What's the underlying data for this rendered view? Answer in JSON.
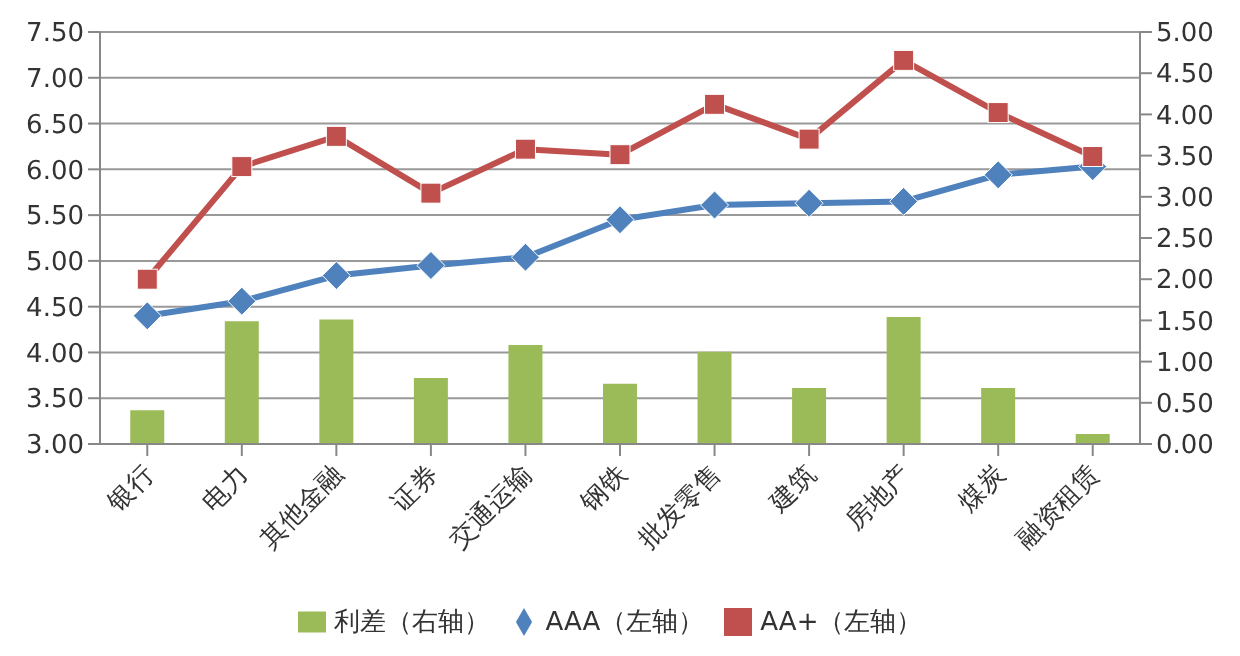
{
  "chart_data": {
    "type": "bar",
    "categories": [
      "银行",
      "电力",
      "其他金融",
      "证券",
      "交通运输",
      "钢铁",
      "批发零售",
      "建筑",
      "房地产",
      "煤炭",
      "融资租赁"
    ],
    "series": [
      {
        "name": "利差（右轴）",
        "axis": "y2",
        "color": "#9bbb59",
        "values": [
          0.41,
          1.49,
          1.51,
          0.8,
          1.2,
          0.73,
          1.12,
          0.68,
          1.54,
          0.68,
          0.12
        ]
      },
      {
        "name": "AAA（左轴）",
        "type": "line",
        "color": "#4f81bd",
        "marker": "diamond",
        "values": [
          4.4,
          4.56,
          4.84,
          4.95,
          5.04,
          5.45,
          5.61,
          5.63,
          5.65,
          5.94,
          6.03
        ]
      },
      {
        "name": "AA+（左轴）",
        "type": "line",
        "color": "#c0504d",
        "marker": "square",
        "values": [
          4.8,
          6.03,
          6.36,
          5.74,
          6.22,
          6.16,
          6.71,
          6.33,
          7.19,
          6.62,
          6.14
        ]
      }
    ],
    "ylim": [
      3,
      7.5
    ],
    "yticks": [
      {
        "value": 3,
        "label": "3.00"
      },
      {
        "value": 3.5,
        "label": "3.50"
      },
      {
        "value": 4,
        "label": "4.00"
      },
      {
        "value": 4.5,
        "label": "4.50"
      },
      {
        "value": 5,
        "label": "5.00"
      },
      {
        "value": 5.5,
        "label": "5.50"
      },
      {
        "value": 6,
        "label": "6.00"
      },
      {
        "value": 6.5,
        "label": "6.50"
      },
      {
        "value": 7,
        "label": "7.00"
      },
      {
        "value": 7.5,
        "label": "7.50"
      }
    ],
    "y2lim": [
      0,
      5
    ],
    "y2ticks": [
      {
        "value": 0,
        "label": "0.00"
      },
      {
        "value": 0.5,
        "label": "0.50"
      },
      {
        "value": 1,
        "label": "1.00"
      },
      {
        "value": 1.5,
        "label": "1.50"
      },
      {
        "value": 2,
        "label": "2.00"
      },
      {
        "value": 2.5,
        "label": "2.50"
      },
      {
        "value": 3,
        "label": "3.00"
      },
      {
        "value": 3.5,
        "label": "3.50"
      },
      {
        "value": 4,
        "label": "4.00"
      },
      {
        "value": 4.5,
        "label": "4.50"
      },
      {
        "value": 5,
        "label": "5.00"
      }
    ],
    "grid": "y",
    "legend": "bottom",
    "line_style": "solid"
  }
}
